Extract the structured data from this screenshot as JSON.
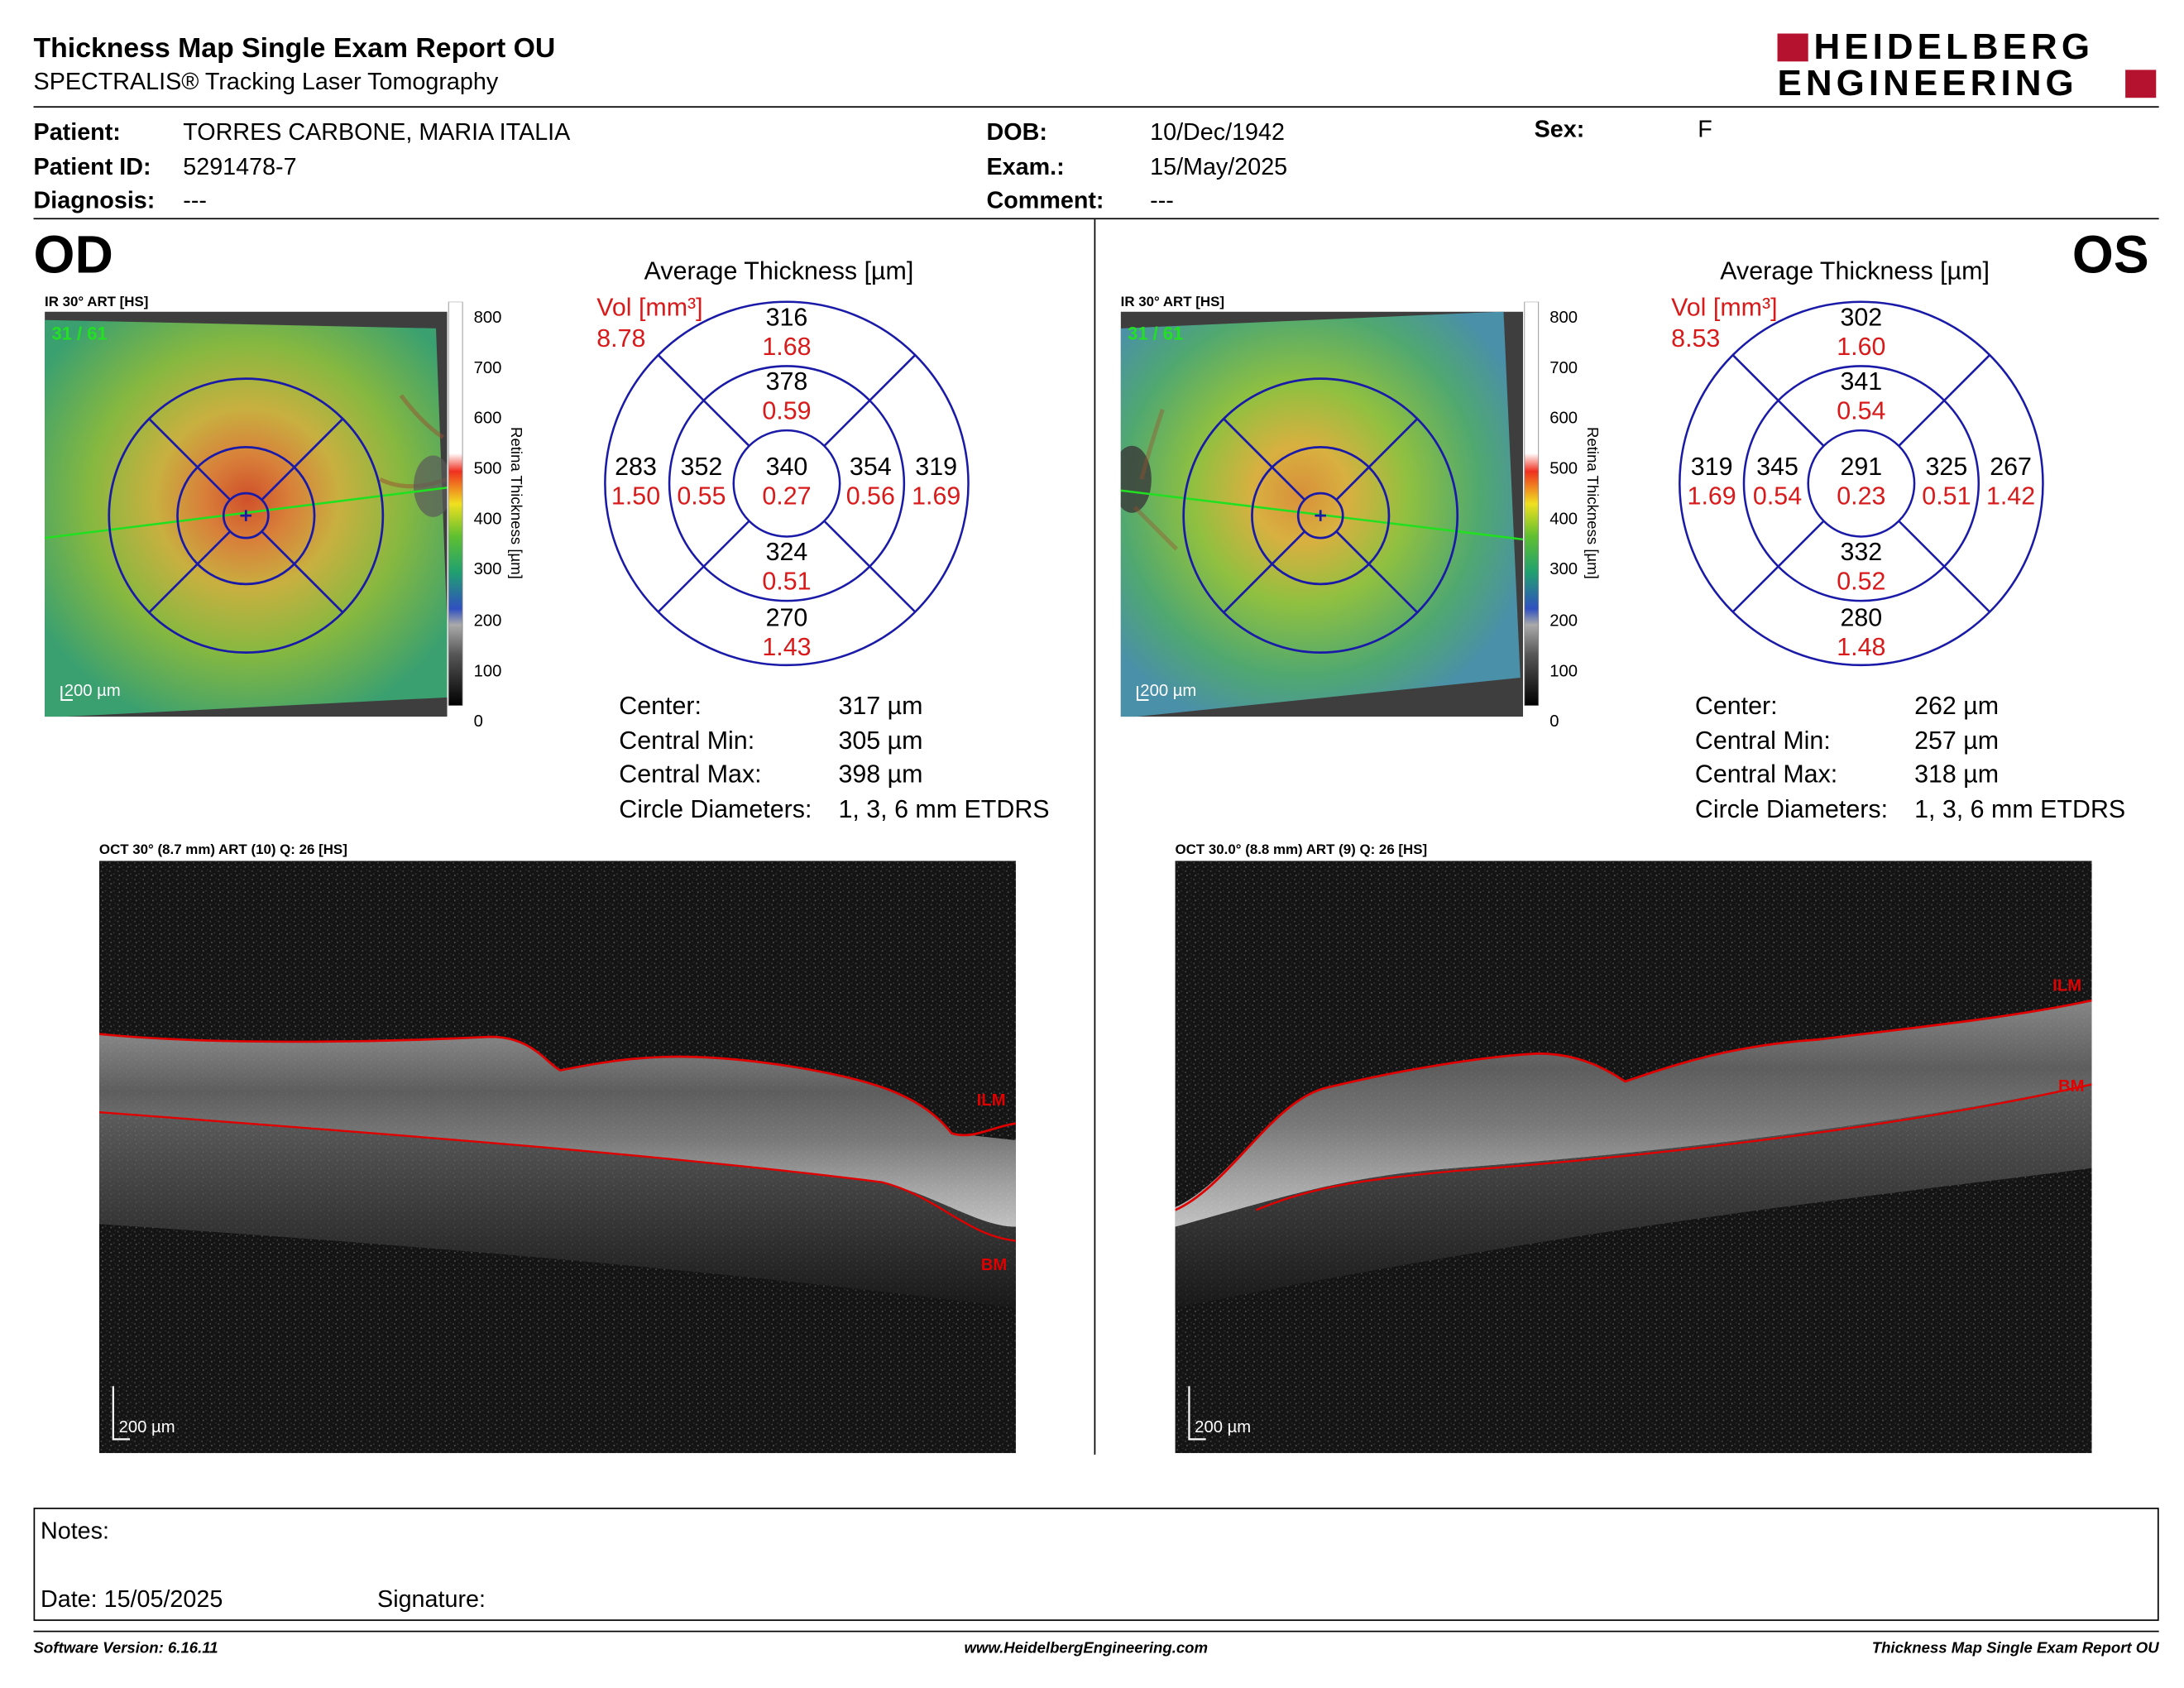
{
  "report": {
    "title": "Thickness Map Single Exam Report OU",
    "subtitle": "SPECTRALIS® Tracking Laser Tomography",
    "logo_line1": "HEIDELBERG",
    "logo_line2": "ENGINEERING"
  },
  "patient": {
    "patient_label": "Patient:",
    "patient_value": "TORRES CARBONE, MARIA ITALIA",
    "id_label": "Patient ID:",
    "id_value": "5291478-7",
    "diagnosis_label": "Diagnosis:",
    "diagnosis_value": "---",
    "dob_label": "DOB:",
    "dob_value": "10/Dec/1942",
    "exam_label": "Exam.:",
    "exam_value": "15/May/2025",
    "comment_label": "Comment:",
    "comment_value": "---",
    "sex_label": "Sex:",
    "sex_value": "F"
  },
  "colorbar": {
    "ticks": [
      "800",
      "700",
      "600",
      "500",
      "400",
      "300",
      "200",
      "100",
      "0"
    ],
    "label": "Retina Thickness [µm]"
  },
  "od": {
    "eye": "OD",
    "ir_label": "IR 30° ART [HS]",
    "frame": "31 / 61",
    "scale": "200 µm",
    "avg_title": "Average Thickness [µm]",
    "vol_label": "Vol [mm³]",
    "vol_total": "8.78",
    "sectors": {
      "outer_top": {
        "t": "316",
        "v": "1.68"
      },
      "inner_top": {
        "t": "378",
        "v": "0.59"
      },
      "outer_left": {
        "t": "283",
        "v": "1.50"
      },
      "inner_left": {
        "t": "352",
        "v": "0.55"
      },
      "center": {
        "t": "340",
        "v": "0.27"
      },
      "inner_right": {
        "t": "354",
        "v": "0.56"
      },
      "outer_right": {
        "t": "319",
        "v": "1.69"
      },
      "inner_bottom": {
        "t": "324",
        "v": "0.51"
      },
      "outer_bottom": {
        "t": "270",
        "v": "1.43"
      }
    },
    "stats": {
      "center_label": "Center:",
      "center_value": "317 µm",
      "min_label": "Central Min:",
      "min_value": "305 µm",
      "max_label": "Central Max:",
      "max_value": "398 µm",
      "diam_label": "Circle Diameters:",
      "diam_value": "1, 3, 6 mm ETDRS"
    },
    "oct_label": "OCT 30° (8.7 mm) ART (10) Q: 26 [HS]",
    "oct_scale": "200 µm",
    "ilm": "ILM",
    "bm": "BM"
  },
  "os": {
    "eye": "OS",
    "ir_label": "IR 30° ART [HS]",
    "frame": "31 / 61",
    "scale": "200 µm",
    "avg_title": "Average Thickness [µm]",
    "vol_label": "Vol [mm³]",
    "vol_total": "8.53",
    "sectors": {
      "outer_top": {
        "t": "302",
        "v": "1.60"
      },
      "inner_top": {
        "t": "341",
        "v": "0.54"
      },
      "outer_left": {
        "t": "319",
        "v": "1.69"
      },
      "inner_left": {
        "t": "345",
        "v": "0.54"
      },
      "center": {
        "t": "291",
        "v": "0.23"
      },
      "inner_right": {
        "t": "325",
        "v": "0.51"
      },
      "outer_right": {
        "t": "267",
        "v": "1.42"
      },
      "inner_bottom": {
        "t": "332",
        "v": "0.52"
      },
      "outer_bottom": {
        "t": "280",
        "v": "1.48"
      }
    },
    "stats": {
      "center_label": "Center:",
      "center_value": "262 µm",
      "min_label": "Central Min:",
      "min_value": "257 µm",
      "max_label": "Central Max:",
      "max_value": "318 µm",
      "diam_label": "Circle Diameters:",
      "diam_value": "1, 3, 6 mm ETDRS"
    },
    "oct_label": "OCT 30.0° (8.8 mm) ART (9) Q: 26 [HS]",
    "oct_scale": "200 µm",
    "ilm": "ILM",
    "bm": "BM"
  },
  "notes": {
    "notes_label": "Notes:",
    "date_label": "Date: 15/05/2025",
    "signature_label": "Signature:"
  },
  "footer": {
    "left": "Software Version: 6.16.11",
    "center": "www.HeidelbergEngineering.com",
    "right": "Thickness Map Single Exam Report OU"
  },
  "colors": {
    "brand_red": "#b5122f",
    "value_red": "#d81a1a",
    "grid_blue": "#1a1aa8",
    "ilm_line": "#e00000"
  }
}
